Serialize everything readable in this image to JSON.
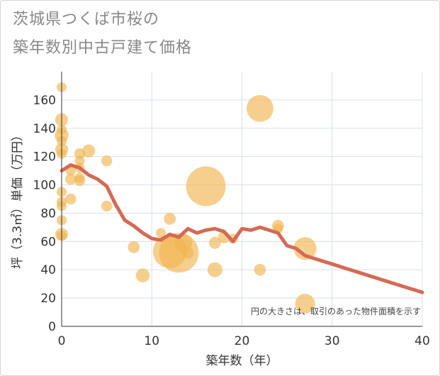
{
  "title_line1": "茨城県つくば市桜の",
  "title_line2": "築年数別中古戸建て価格",
  "chart_data": {
    "type": "scatter",
    "title": "茨城県つくば市桜の 築年数別中古戸建て価格",
    "xlabel": "築年数（年）",
    "ylabel": "坪（3.3㎡）単価（万円）",
    "xlim": [
      0,
      40
    ],
    "ylim": [
      0,
      180
    ],
    "xticks": [
      0,
      10,
      20,
      30,
      40
    ],
    "yticks": [
      0,
      20,
      40,
      60,
      80,
      100,
      120,
      140,
      160
    ],
    "grid": true,
    "note": "円の大きさは、取引のあった物件面積を示す",
    "colors": {
      "bubble": "#f1b552",
      "line": "#d46a55",
      "grid": "#d8e0e8"
    },
    "bubbles": [
      {
        "x": 0,
        "y": 169,
        "s": 1
      },
      {
        "x": 0,
        "y": 146,
        "s": 1.3
      },
      {
        "x": 0,
        "y": 139,
        "s": 1
      },
      {
        "x": 0,
        "y": 135,
        "s": 1.4
      },
      {
        "x": 0,
        "y": 131,
        "s": 1
      },
      {
        "x": 0,
        "y": 125,
        "s": 1.3
      },
      {
        "x": 0,
        "y": 122,
        "s": 1
      },
      {
        "x": 0,
        "y": 95,
        "s": 1
      },
      {
        "x": 0,
        "y": 88,
        "s": 1
      },
      {
        "x": 0,
        "y": 85,
        "s": 1
      },
      {
        "x": 0,
        "y": 75,
        "s": 1
      },
      {
        "x": 0,
        "y": 65,
        "s": 1.3
      },
      {
        "x": 0,
        "y": 64,
        "s": 1
      },
      {
        "x": 1,
        "y": 110,
        "s": 1
      },
      {
        "x": 1,
        "y": 104,
        "s": 1.1
      },
      {
        "x": 1,
        "y": 90,
        "s": 1.1
      },
      {
        "x": 2,
        "y": 122,
        "s": 1.1
      },
      {
        "x": 2,
        "y": 117,
        "s": 1
      },
      {
        "x": 2,
        "y": 112,
        "s": 1
      },
      {
        "x": 2,
        "y": 105,
        "s": 1
      },
      {
        "x": 2,
        "y": 103,
        "s": 1.1
      },
      {
        "x": 3,
        "y": 124,
        "s": 1.3
      },
      {
        "x": 5,
        "y": 117,
        "s": 1.1
      },
      {
        "x": 5,
        "y": 85,
        "s": 1.1
      },
      {
        "x": 8,
        "y": 56,
        "s": 1.2
      },
      {
        "x": 9,
        "y": 36,
        "s": 1.4
      },
      {
        "x": 11,
        "y": 66,
        "s": 1
      },
      {
        "x": 12,
        "y": 76,
        "s": 1.2
      },
      {
        "x": 12,
        "y": 53,
        "s": 3.4
      },
      {
        "x": 13,
        "y": 52,
        "s": 4
      },
      {
        "x": 13.5,
        "y": 59,
        "s": 1.8
      },
      {
        "x": 14,
        "y": 52,
        "s": 1.2
      },
      {
        "x": 16,
        "y": 99,
        "s": 4
      },
      {
        "x": 17,
        "y": 40,
        "s": 1.5
      },
      {
        "x": 17,
        "y": 59,
        "s": 1.2
      },
      {
        "x": 18,
        "y": 63,
        "s": 1.2
      },
      {
        "x": 19,
        "y": 62,
        "s": 1
      },
      {
        "x": 22,
        "y": 154,
        "s": 2.7
      },
      {
        "x": 22,
        "y": 40,
        "s": 1.2
      },
      {
        "x": 24,
        "y": 71,
        "s": 1.2
      },
      {
        "x": 24,
        "y": 69,
        "s": 1
      },
      {
        "x": 27,
        "y": 55,
        "s": 2.3
      },
      {
        "x": 27,
        "y": 16,
        "s": 2
      }
    ],
    "trend_line": {
      "x": [
        0,
        1,
        2,
        3,
        4,
        5,
        6,
        7,
        8,
        9,
        10,
        11,
        12,
        13,
        14,
        15,
        16,
        17,
        18,
        19,
        20,
        21,
        22,
        23,
        24,
        25,
        26,
        27,
        28,
        29,
        30,
        31,
        32,
        33,
        34,
        35,
        36,
        37,
        38,
        39,
        40
      ],
      "y": [
        110,
        114,
        112,
        107,
        104,
        99,
        86,
        75,
        71,
        66,
        62,
        61,
        65,
        63,
        69,
        66,
        68,
        69,
        67,
        60,
        69,
        68,
        70,
        68,
        66,
        57,
        55,
        50,
        48,
        46,
        44,
        42,
        40,
        38,
        36,
        34,
        32,
        30,
        28,
        26,
        24
      ]
    }
  }
}
